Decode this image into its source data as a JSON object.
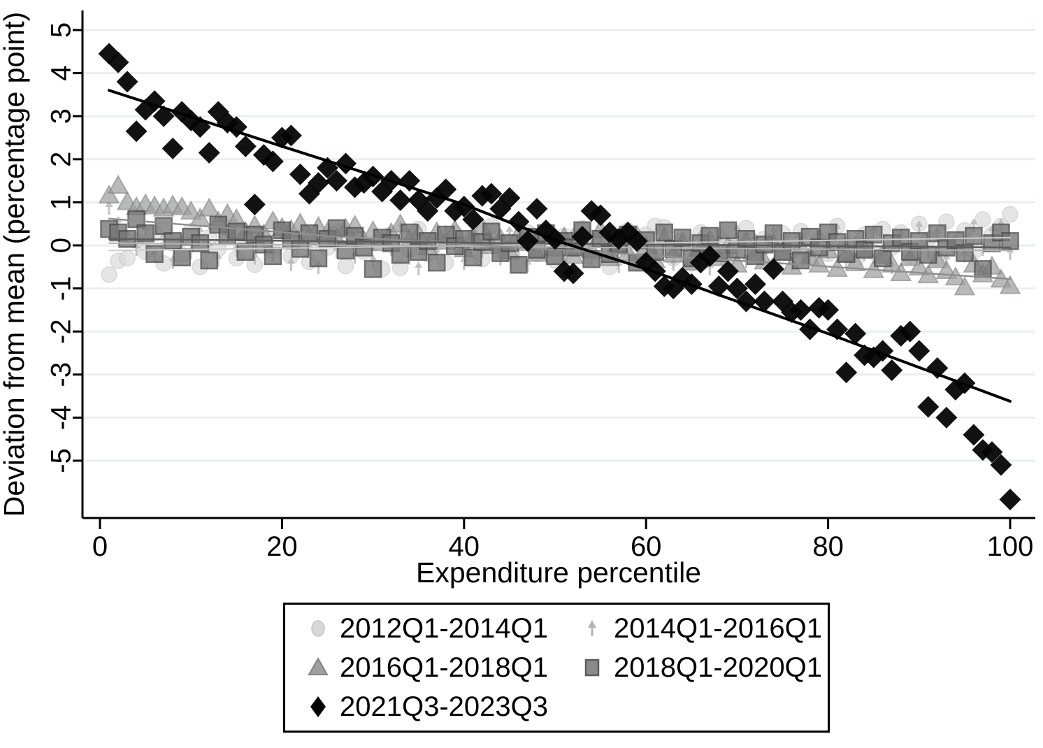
{
  "figure": {
    "y_axis": {
      "title": "Deviation from mean (percentage point)",
      "ticks": [
        5,
        4,
        3,
        2,
        1,
        0,
        -1,
        -2,
        -3,
        -4,
        -5
      ]
    },
    "x_axis": {
      "title": "Expenditure percentile",
      "ticks": [
        0,
        20,
        40,
        60,
        80,
        100
      ]
    }
  },
  "legend": {
    "items": [
      {
        "label": "2012Q1-2014Q1",
        "marker": "circle-icon"
      },
      {
        "label": "2014Q1-2016Q1",
        "marker": "arrow-icon"
      },
      {
        "label": "2016Q1-2018Q1",
        "marker": "triangle-icon"
      },
      {
        "label": "2018Q1-2020Q1",
        "marker": "square-icon"
      },
      {
        "label": "2021Q3-2023Q3",
        "marker": "diamond-icon"
      }
    ]
  },
  "chart_data": {
    "type": "scatter",
    "title": "",
    "xlabel": "Expenditure percentile",
    "ylabel": "Deviation from mean (percentage point)",
    "xlim": [
      -1.9,
      102.8
    ],
    "ylim": [
      -6.3,
      5.45
    ],
    "grid": true,
    "gridline_color": "#e9eff3",
    "legend_position": "bottom",
    "x": [
      1,
      2,
      3,
      4,
      5,
      6,
      7,
      8,
      9,
      10,
      11,
      12,
      13,
      14,
      15,
      16,
      17,
      18,
      19,
      20,
      21,
      22,
      23,
      24,
      25,
      26,
      27,
      28,
      29,
      30,
      31,
      32,
      33,
      34,
      35,
      36,
      37,
      38,
      39,
      40,
      41,
      42,
      43,
      44,
      45,
      46,
      47,
      48,
      49,
      50,
      51,
      52,
      53,
      54,
      55,
      56,
      57,
      58,
      59,
      60,
      61,
      62,
      63,
      64,
      65,
      66,
      67,
      68,
      69,
      70,
      71,
      72,
      73,
      74,
      75,
      76,
      77,
      78,
      79,
      80,
      81,
      82,
      83,
      84,
      85,
      86,
      87,
      88,
      89,
      90,
      91,
      92,
      93,
      94,
      95,
      96,
      97,
      98,
      99,
      100
    ],
    "series": [
      {
        "name": "2012Q1-2014Q1",
        "marker": "circle",
        "color": "#d8d8d8",
        "edge": "#c4c4c4",
        "opacity": 0.65,
        "values": [
          -0.68,
          -0.36,
          -0.3,
          0.12,
          -0.15,
          0.28,
          -0.42,
          0.05,
          -0.22,
          0.33,
          -0.5,
          0.18,
          -0.08,
          0.41,
          -0.3,
          0.1,
          -0.45,
          0.22,
          -0.12,
          0.35,
          -0.25,
          0.08,
          -0.38,
          0.15,
          -0.05,
          0.3,
          -0.48,
          0.2,
          -0.15,
          0.05,
          -0.55,
          0.25,
          -0.52,
          -0.1,
          0.38,
          -0.2,
          0.12,
          -0.4,
          0.28,
          -0.06,
          0.18,
          -0.32,
          0.45,
          -0.15,
          0.08,
          -0.45,
          0.3,
          -0.2,
          0.1,
          -0.35,
          0.22,
          -0.08,
          0.4,
          -0.28,
          0.15,
          -0.5,
          0.05,
          0.35,
          -0.18,
          0.25,
          0.45,
          0.42,
          -0.3,
          0.12,
          -0.42,
          0.3,
          -0.1,
          0.2,
          -0.35,
          0.05,
          0.4,
          -0.22,
          0.15,
          -0.48,
          0.28,
          -0.12,
          0.33,
          -0.3,
          0.1,
          -0.2,
          0.45,
          0.02,
          -0.35,
          0.25,
          -0.15,
          0.38,
          -0.05,
          0.3,
          -0.25,
          0.5,
          0.15,
          -0.3,
          0.55,
          0.05,
          0.35,
          -0.15,
          0.6,
          0.25,
          0.45,
          0.72
        ]
      },
      {
        "name": "2014Q1-2016Q1",
        "marker": "arrow",
        "color": "#b3b3b3",
        "edge": "#b3b3b3",
        "opacity": 0.8,
        "values": [
          0.86,
          0.5,
          0.2,
          -0.1,
          0.32,
          -0.25,
          0.15,
          -0.4,
          0.08,
          -0.18,
          0.28,
          -0.05,
          -0.35,
          0.2,
          -0.12,
          0.38,
          -0.3,
          0.1,
          -0.22,
          0.3,
          -0.45,
          0.12,
          -0.08,
          -0.52,
          0.25,
          -0.15,
          0.35,
          -0.28,
          0.05,
          -0.38,
          0.18,
          -0.1,
          0.4,
          -0.3,
          -0.55,
          0.15,
          -0.2,
          0.3,
          -0.05,
          -0.42,
          0.22,
          -0.15,
          0.08,
          -0.32,
          0.28,
          -0.1,
          -0.48,
          0.18,
          -0.25,
          0.1,
          -0.4,
          0.25,
          -0.12,
          -0.3,
          0.2,
          -0.05,
          -0.5,
          0.15,
          -0.35,
          0.05,
          -0.2,
          0.3,
          -0.45,
          0.1,
          -0.28,
          0.2,
          -0.55,
          0.08,
          -0.15,
          0.32,
          -0.38,
          0.12,
          -0.25,
          0.28,
          -0.08,
          -0.45,
          0.15,
          -0.3,
          0.22,
          -0.18,
          0.35,
          -0.4,
          0.05,
          -0.22,
          0.3,
          -0.12,
          -0.52,
          0.2,
          -0.3,
          0.4,
          -0.15,
          0.25,
          -0.35,
          0.1,
          -0.25,
          0.45,
          -0.1,
          0.3,
          0.45,
          -0.2
        ]
      },
      {
        "name": "2016Q1-2018Q1",
        "marker": "triangle",
        "color": "#a0a0a0",
        "edge": "#848484",
        "opacity": 0.72,
        "values": [
          1.15,
          1.38,
          1.0,
          0.88,
          0.95,
          0.9,
          0.85,
          0.92,
          0.88,
          0.78,
          0.62,
          0.85,
          0.55,
          0.72,
          0.6,
          0.3,
          0.45,
          0.25,
          0.55,
          0.4,
          0.35,
          0.5,
          0.2,
          0.42,
          0.3,
          0.15,
          0.38,
          0.45,
          0.1,
          0.32,
          0.05,
          0.28,
          0.48,
          0.12,
          0.25,
          -0.05,
          0.3,
          0.08,
          0.35,
          -0.1,
          0.2,
          0.4,
          -0.02,
          0.15,
          -0.15,
          0.25,
          0.05,
          -0.2,
          0.3,
          -0.08,
          0.18,
          -0.25,
          0.1,
          -0.12,
          0.35,
          -0.3,
          0.02,
          -0.18,
          0.22,
          -0.05,
          -0.35,
          0.15,
          -0.22,
          0.05,
          -0.4,
          -0.1,
          0.12,
          -0.3,
          -0.02,
          -0.45,
          0.08,
          -0.2,
          -0.38,
          0.02,
          -0.15,
          -0.5,
          -0.05,
          -0.28,
          -0.45,
          -0.12,
          -0.55,
          -0.2,
          -0.42,
          -0.1,
          -0.58,
          -0.25,
          -0.45,
          -0.65,
          -0.3,
          -0.52,
          -0.7,
          -0.35,
          -0.6,
          -0.75,
          -0.98,
          -0.45,
          -0.68,
          -0.5,
          -0.8,
          -0.95
        ]
      },
      {
        "name": "2018Q1-2020Q1",
        "marker": "square",
        "color": "#757575",
        "edge": "#4a4a4a",
        "opacity": 0.78,
        "values": [
          0.38,
          0.3,
          0.15,
          0.61,
          0.28,
          -0.2,
          0.45,
          0.1,
          -0.28,
          0.2,
          0.05,
          -0.35,
          0.48,
          0.22,
          0.32,
          -0.15,
          0.25,
          0.02,
          -0.25,
          0.35,
          0.12,
          -0.08,
          0.28,
          -0.3,
          0.15,
          0.4,
          -0.12,
          0.22,
          -0.05,
          -0.55,
          0.18,
          0.05,
          -0.22,
          0.3,
          -0.15,
          0.1,
          -0.4,
          0.25,
          -0.02,
          0.15,
          -0.28,
          0.08,
          0.32,
          -0.18,
          0.05,
          -0.45,
          0.2,
          -0.1,
          0.28,
          -0.25,
          0.1,
          -0.05,
          0.35,
          -0.32,
          0.15,
          -0.2,
          0.02,
          0.25,
          -0.4,
          0.12,
          -0.15,
          0.3,
          -0.08,
          0.18,
          -0.3,
          0.05,
          0.22,
          -0.18,
          0.35,
          -0.1,
          0.15,
          -0.25,
          0.02,
          0.28,
          -0.15,
          0.1,
          -0.35,
          0.2,
          -0.05,
          0.3,
          0.08,
          -0.2,
          0.15,
          -0.1,
          0.25,
          -0.3,
          0.05,
          0.18,
          -0.15,
          0.1,
          -0.22,
          0.28,
          -0.05,
          0.12,
          -0.18,
          0.22,
          -0.55,
          0.05,
          0.3,
          0.1
        ]
      },
      {
        "name": "2021Q3-2023Q3",
        "marker": "diamond",
        "color": "#050505",
        "edge": "#050505",
        "opacity": 0.95,
        "values": [
          4.45,
          4.25,
          3.8,
          2.65,
          3.15,
          3.35,
          3.0,
          2.25,
          3.1,
          2.9,
          2.75,
          2.15,
          3.1,
          2.85,
          2.75,
          2.3,
          0.95,
          2.1,
          1.95,
          2.5,
          2.55,
          1.65,
          1.2,
          1.45,
          1.8,
          1.5,
          1.9,
          1.35,
          1.45,
          1.6,
          1.25,
          1.5,
          1.05,
          1.5,
          1.05,
          0.8,
          1.1,
          1.3,
          0.8,
          0.9,
          0.6,
          1.15,
          1.2,
          0.85,
          1.1,
          0.55,
          0.1,
          0.85,
          0.35,
          0.15,
          -0.6,
          -0.65,
          0.2,
          0.8,
          0.7,
          0.3,
          0.15,
          0.3,
          0.1,
          -0.4,
          -0.6,
          -0.95,
          -1.0,
          -0.75,
          -0.9,
          -0.4,
          -0.25,
          -0.95,
          -0.6,
          -1.0,
          -1.3,
          -0.9,
          -1.3,
          -0.55,
          -1.3,
          -1.55,
          -1.5,
          -1.95,
          -1.45,
          -1.5,
          -1.95,
          -2.95,
          -2.05,
          -2.55,
          -2.6,
          -2.45,
          -2.9,
          -2.1,
          -2.0,
          -2.45,
          -3.75,
          -2.85,
          -4.0,
          -3.35,
          -3.2,
          -4.4,
          -4.75,
          -4.8,
          -5.1,
          -5.9
        ]
      }
    ],
    "fit_lines": [
      {
        "series": "2012Q1-2014Q1",
        "color": "#cbcbcb",
        "width": 2,
        "points": [
          [
            1,
            -0.12
          ],
          [
            50,
            0.02
          ],
          [
            100,
            0.18
          ]
        ]
      },
      {
        "series": "2014Q1-2016Q1",
        "color": "#b3b3b3",
        "width": 2,
        "points": [
          [
            1,
            0.05
          ],
          [
            50,
            -0.04
          ],
          [
            100,
            -0.12
          ]
        ]
      },
      {
        "series": "2016Q1-2018Q1",
        "color": "#8f8f8f",
        "width": 2.5,
        "points": [
          [
            1,
            0.62
          ],
          [
            25,
            0.22
          ],
          [
            50,
            -0.1
          ],
          [
            75,
            -0.42
          ],
          [
            100,
            -0.78
          ]
        ]
      },
      {
        "series": "2018Q1-2020Q1",
        "color": "#5c5c5c",
        "width": 2.5,
        "points": [
          [
            1,
            0.15
          ],
          [
            50,
            0.04
          ],
          [
            100,
            -0.05
          ]
        ]
      },
      {
        "series": "2021Q3-2023Q3",
        "color": "#000000",
        "width": 4,
        "points": [
          [
            1,
            3.6
          ],
          [
            20,
            2.3
          ],
          [
            40,
            0.95
          ],
          [
            50,
            0.12
          ],
          [
            60,
            -0.55
          ],
          [
            80,
            -2.05
          ],
          [
            100,
            -3.62
          ]
        ]
      }
    ]
  }
}
